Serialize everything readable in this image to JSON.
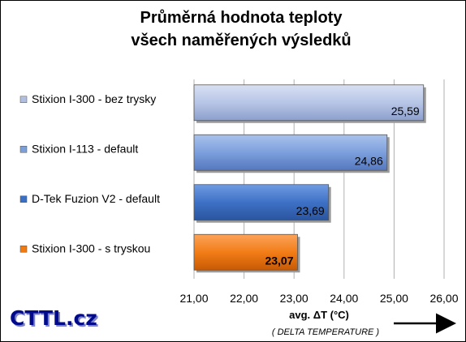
{
  "chart_data": {
    "type": "bar",
    "orientation": "horizontal",
    "title_line1": "Průměrná hodnota teploty",
    "title_line2": "všech naměřených výsledků",
    "categories": [
      "Stixion I-300 - bez trysky",
      "Stixion I-113 - default",
      "D-Tek Fuzion V2 - default",
      "Stixion I-300 - s tryskou"
    ],
    "values": [
      25.59,
      24.86,
      23.69,
      23.07
    ],
    "value_labels": [
      "25,59",
      "24,86",
      "23,69",
      "23,07"
    ],
    "highlight_index": 3,
    "colors": [
      "#b0bfe0",
      "#7a9fd9",
      "#3a6fc4",
      "#f07a12"
    ],
    "xlim": [
      21,
      26
    ],
    "xticks": [
      21,
      22,
      23,
      24,
      25,
      26
    ],
    "xtick_labels": [
      "21,00",
      "22,00",
      "23,00",
      "24,00",
      "25,00",
      "26,00"
    ],
    "xlabel": "avg. ΔT (°C)",
    "xlabel_sub": "( DELTA TEMPERATURE )",
    "grid": true,
    "logo_text": "CTTL.cz"
  }
}
